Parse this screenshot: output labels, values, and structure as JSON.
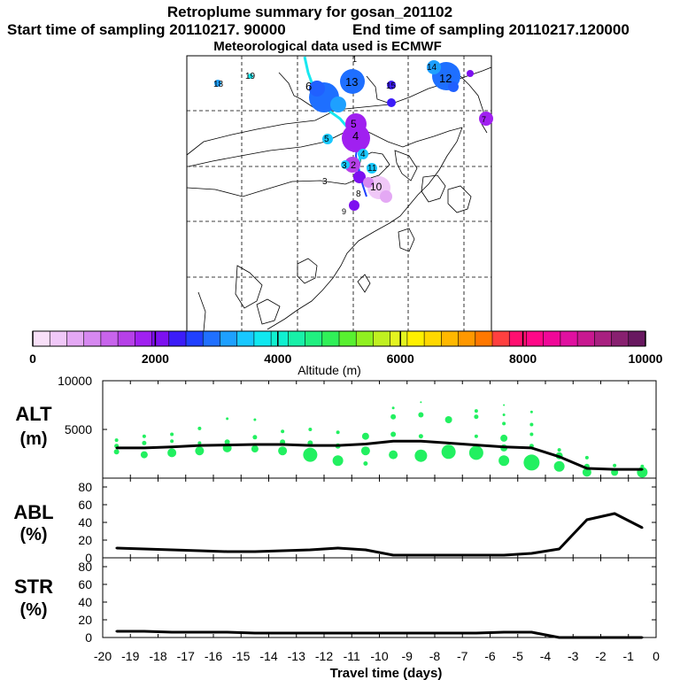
{
  "header": {
    "title": "Retroplume summary for gosan_201102",
    "start": "Start time of sampling 20110217. 90000",
    "end": "End time of sampling 20110217.120000",
    "met": "Meteorological data used is ECMWF"
  },
  "colorbar": {
    "colors": [
      "#f8e0f8",
      "#f0c8f8",
      "#e4a8f4",
      "#d688f0",
      "#c864ec",
      "#b640e8",
      "#a020f0",
      "#7d10f0",
      "#3c1cf8",
      "#2040ff",
      "#2070ff",
      "#1ea0ff",
      "#18c8ff",
      "#10e8f0",
      "#10f0d0",
      "#18f0a8",
      "#20f080",
      "#30f058",
      "#58f030",
      "#90f020",
      "#c0f020",
      "#e4f420",
      "#fff000",
      "#ffd800",
      "#ffb800",
      "#ff9800",
      "#ff7800",
      "#ff4040",
      "#ff1070",
      "#ff0888",
      "#f00898",
      "#e010a0",
      "#c81890",
      "#a82080",
      "#882070",
      "#681860"
    ],
    "tick_labels": [
      "0",
      "2000",
      "4000",
      "6000",
      "8000",
      "10000"
    ],
    "title": "Altitude (m)"
  },
  "map": {
    "labels": [
      "18",
      "19",
      "6",
      "13",
      "15",
      "14",
      "12",
      "5",
      "4",
      "5",
      "4",
      "3",
      "2",
      "3",
      "10",
      "11",
      "8",
      "9",
      "1",
      "7"
    ]
  },
  "chart_data": [
    {
      "type": "line",
      "name": "ALT",
      "ylabel": "ALT",
      "yunit": "(m)",
      "ylim": [
        0,
        10000
      ],
      "ytick_labels": [
        "10000",
        "5000"
      ],
      "x": [
        -19.5,
        -18.5,
        -17.5,
        -16.5,
        -15.5,
        -14.5,
        -13.5,
        -12.5,
        -11.5,
        -10.5,
        -9.5,
        -8.5,
        -7.5,
        -6.5,
        -5.5,
        -4.5,
        -3.5,
        -2.5,
        -1.5,
        -0.5
      ],
      "values": [
        3100,
        3100,
        3200,
        3350,
        3400,
        3450,
        3450,
        3350,
        3350,
        3500,
        3800,
        3800,
        3600,
        3400,
        3200,
        3100,
        2200,
        1000,
        900,
        900
      ],
      "particles": [
        {
          "x": -19.5,
          "y": 2700,
          "r": 3
        },
        {
          "x": -19.5,
          "y": 3300,
          "r": 2.5
        },
        {
          "x": -19.5,
          "y": 3900,
          "r": 2
        },
        {
          "x": -18.5,
          "y": 2400,
          "r": 4
        },
        {
          "x": -18.5,
          "y": 3600,
          "r": 2.5
        },
        {
          "x": -18.5,
          "y": 4300,
          "r": 2
        },
        {
          "x": -17.5,
          "y": 2600,
          "r": 5
        },
        {
          "x": -17.5,
          "y": 3800,
          "r": 2
        },
        {
          "x": -17.5,
          "y": 4500,
          "r": 2
        },
        {
          "x": -16.5,
          "y": 2800,
          "r": 5
        },
        {
          "x": -16.5,
          "y": 3600,
          "r": 2
        },
        {
          "x": -16.5,
          "y": 5100,
          "r": 2
        },
        {
          "x": -15.5,
          "y": 3100,
          "r": 5
        },
        {
          "x": -15.5,
          "y": 3700,
          "r": 3
        },
        {
          "x": -15.5,
          "y": 6100,
          "r": 1.5
        },
        {
          "x": -14.5,
          "y": 3000,
          "r": 4
        },
        {
          "x": -14.5,
          "y": 4200,
          "r": 2.5
        },
        {
          "x": -14.5,
          "y": 6000,
          "r": 1.5
        },
        {
          "x": -13.5,
          "y": 2800,
          "r": 5
        },
        {
          "x": -13.5,
          "y": 3700,
          "r": 3
        },
        {
          "x": -13.5,
          "y": 4800,
          "r": 2
        },
        {
          "x": -12.5,
          "y": 2400,
          "r": 8
        },
        {
          "x": -12.5,
          "y": 3600,
          "r": 3
        },
        {
          "x": -12.5,
          "y": 5000,
          "r": 2
        },
        {
          "x": -11.5,
          "y": 1800,
          "r": 6
        },
        {
          "x": -11.5,
          "y": 3300,
          "r": 3
        },
        {
          "x": -11.5,
          "y": 4700,
          "r": 2
        },
        {
          "x": -10.5,
          "y": 2800,
          "r": 5
        },
        {
          "x": -10.5,
          "y": 4300,
          "r": 4
        },
        {
          "x": -10.5,
          "y": 1500,
          "r": 2.5
        },
        {
          "x": -9.5,
          "y": 2400,
          "r": 5
        },
        {
          "x": -9.5,
          "y": 4500,
          "r": 3
        },
        {
          "x": -9.5,
          "y": 6300,
          "r": 3
        },
        {
          "x": -9.5,
          "y": 7200,
          "r": 1.5
        },
        {
          "x": -8.5,
          "y": 2300,
          "r": 7
        },
        {
          "x": -8.5,
          "y": 4300,
          "r": 2.5
        },
        {
          "x": -8.5,
          "y": 6500,
          "r": 3
        },
        {
          "x": -8.5,
          "y": 7800,
          "r": 1
        },
        {
          "x": -7.5,
          "y": 2700,
          "r": 8
        },
        {
          "x": -7.5,
          "y": 6000,
          "r": 4
        },
        {
          "x": -6.5,
          "y": 2600,
          "r": 8
        },
        {
          "x": -6.5,
          "y": 4300,
          "r": 2
        },
        {
          "x": -6.5,
          "y": 6300,
          "r": 2.5
        },
        {
          "x": -6.5,
          "y": 6900,
          "r": 2
        },
        {
          "x": -5.5,
          "y": 1800,
          "r": 6
        },
        {
          "x": -5.5,
          "y": 3100,
          "r": 4
        },
        {
          "x": -5.5,
          "y": 4100,
          "r": 4
        },
        {
          "x": -5.5,
          "y": 5600,
          "r": 2
        },
        {
          "x": -5.5,
          "y": 6500,
          "r": 1.5
        },
        {
          "x": -5.5,
          "y": 7500,
          "r": 1
        },
        {
          "x": -4.5,
          "y": 1600,
          "r": 9
        },
        {
          "x": -4.5,
          "y": 3300,
          "r": 2.5
        },
        {
          "x": -4.5,
          "y": 4500,
          "r": 2
        },
        {
          "x": -4.5,
          "y": 5500,
          "r": 2
        },
        {
          "x": -4.5,
          "y": 6800,
          "r": 1.5
        },
        {
          "x": -3.5,
          "y": 1200,
          "r": 6
        },
        {
          "x": -3.5,
          "y": 2300,
          "r": 4
        },
        {
          "x": -3.5,
          "y": 2900,
          "r": 2
        },
        {
          "x": -2.5,
          "y": 600,
          "r": 5
        },
        {
          "x": -2.5,
          "y": 1200,
          "r": 3
        },
        {
          "x": -2.5,
          "y": 2100,
          "r": 2
        },
        {
          "x": -1.5,
          "y": 600,
          "r": 4
        },
        {
          "x": -1.5,
          "y": 1300,
          "r": 2
        },
        {
          "x": -0.5,
          "y": 600,
          "r": 6
        },
        {
          "x": -0.5,
          "y": 1200,
          "r": 2
        }
      ],
      "series_color": "#000000",
      "particle_color": "#22f060"
    },
    {
      "type": "line",
      "name": "ABL",
      "ylabel": "ABL",
      "yunit": "(%)",
      "ylim": [
        0,
        90
      ],
      "ytick_labels": [
        "80",
        "60",
        "40",
        "20",
        "0"
      ],
      "x": [
        -19.5,
        -18.5,
        -17.5,
        -16.5,
        -15.5,
        -14.5,
        -13.5,
        -12.5,
        -11.5,
        -10.5,
        -9.5,
        -8.5,
        -7.5,
        -6.5,
        -5.5,
        -4.5,
        -3.5,
        -2.5,
        -1.5,
        -0.5
      ],
      "values": [
        11,
        10,
        9,
        8,
        7,
        7,
        8,
        9,
        11,
        9,
        3,
        3,
        3,
        3,
        3,
        5,
        10,
        43,
        50,
        34
      ],
      "series_color": "#000000"
    },
    {
      "type": "line",
      "name": "STR",
      "ylabel": "STR",
      "yunit": "(%)",
      "ylim": [
        0,
        90
      ],
      "ytick_labels": [
        "80",
        "60",
        "40",
        "20",
        "0"
      ],
      "x": [
        -19.5,
        -18.5,
        -17.5,
        -16.5,
        -15.5,
        -14.5,
        -13.5,
        -12.5,
        -11.5,
        -10.5,
        -9.5,
        -8.5,
        -7.5,
        -6.5,
        -5.5,
        -4.5,
        -3.5,
        -2.5,
        -1.5,
        -0.5
      ],
      "values": [
        7,
        7,
        6,
        6,
        6,
        5,
        5,
        5,
        5,
        5,
        5,
        5,
        5,
        5,
        6,
        6,
        0,
        0,
        0,
        0
      ],
      "series_color": "#000000"
    }
  ],
  "xaxis": {
    "xlim": [
      -20,
      0
    ],
    "tick_labels": [
      "-20",
      "-19",
      "-18",
      "-17",
      "-16",
      "-15",
      "-14",
      "-13",
      "-12",
      "-11",
      "-10",
      "-9",
      "-8",
      "-7",
      "-6",
      "-5",
      "-4",
      "-3",
      "-2",
      "-1",
      "0"
    ],
    "title": "Travel time (days)"
  }
}
